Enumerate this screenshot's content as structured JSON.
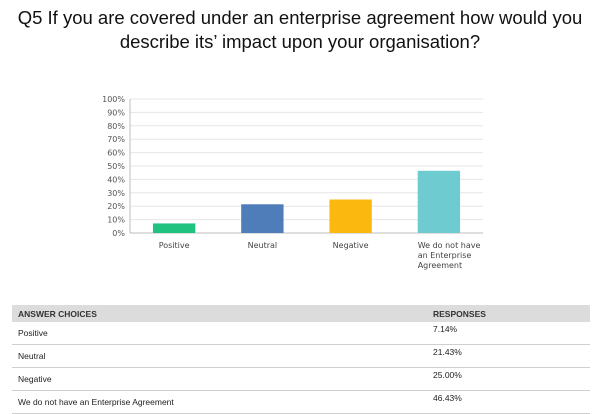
{
  "title": "Q5 If you are covered under an enterprise agreement how would you describe its’ impact upon your organisation?",
  "chart_data": {
    "type": "bar",
    "categories": [
      "Positive",
      "Neutral",
      "Negative",
      "We do not have an Enterprise Agreement"
    ],
    "category_lines": [
      [
        "Positive"
      ],
      [
        "Neutral"
      ],
      [
        "Negative"
      ],
      [
        "We do not have",
        "an Enterprise",
        "Agreement"
      ]
    ],
    "values": [
      7.14,
      21.43,
      25.0,
      46.43
    ],
    "colors": [
      "#1fc27e",
      "#4f7dba",
      "#fbb90f",
      "#6ecbd0"
    ],
    "ylim": [
      0,
      100
    ],
    "yticks": [
      "0%",
      "10%",
      "20%",
      "30%",
      "40%",
      "50%",
      "60%",
      "70%",
      "80%",
      "90%",
      "100%"
    ],
    "grid": true
  },
  "table": {
    "headers": {
      "choice": "ANSWER CHOICES",
      "responses": "RESPONSES"
    },
    "rows": [
      {
        "choice": "Positive",
        "response": "7.14%"
      },
      {
        "choice": "Neutral",
        "response": "21.43%"
      },
      {
        "choice": "Negative",
        "response": "25.00%"
      },
      {
        "choice": "We do not have an Enterprise Agreement",
        "response": "46.43%"
      }
    ]
  }
}
